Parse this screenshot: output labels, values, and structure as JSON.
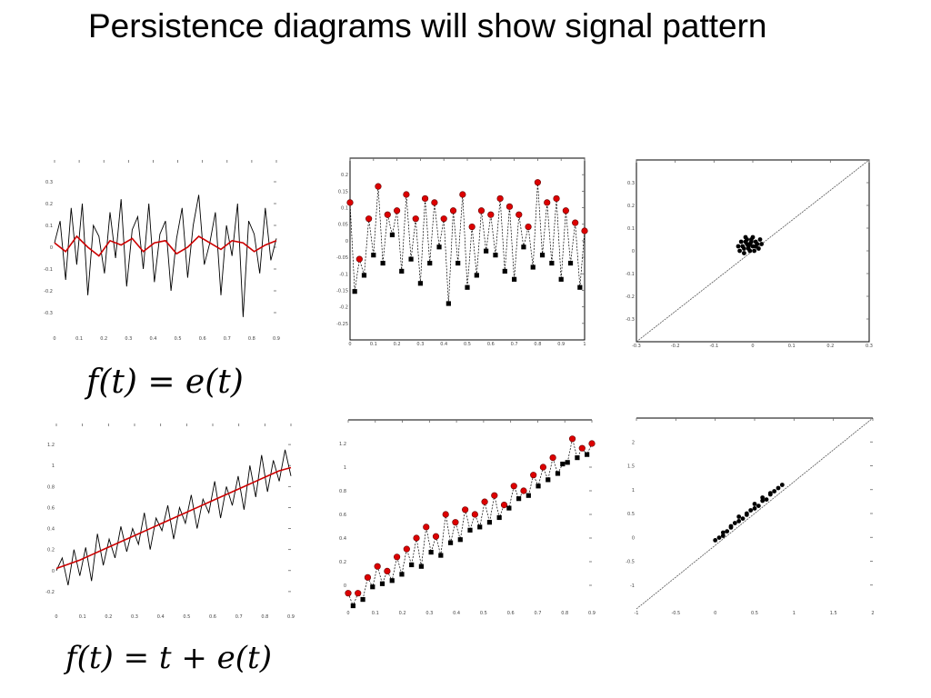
{
  "title": "Persistence diagrams will show signal pattern",
  "formulas": {
    "top": "f(t) = e(t)",
    "bottom": "f(t) = t + e(t)"
  },
  "colors": {
    "signal": "#000000",
    "smooth": "#cc0000",
    "max_marker": "#dd0000",
    "min_marker": "#000000",
    "diagonal": "#555555"
  },
  "chart_data": [
    {
      "id": "noise-signal",
      "type": "line",
      "title": "",
      "xlim": [
        0,
        1
      ],
      "ylim": [
        -0.4,
        0.4
      ],
      "xticks": [
        "0",
        "0.1",
        "0.2",
        "0.3",
        "0.4",
        "0.5",
        "0.6",
        "0.7",
        "0.8",
        "0.9"
      ],
      "yticks": [
        "-0.3",
        "-0.2",
        "-0.1",
        "0",
        "0.1",
        "0.2",
        "0.3"
      ],
      "series": [
        {
          "x": [
            0.0,
            0.025,
            0.05,
            0.075,
            0.1,
            0.125,
            0.15,
            0.175,
            0.2,
            0.225,
            0.25,
            0.275,
            0.3,
            0.325,
            0.35,
            0.375,
            0.4,
            0.425,
            0.45,
            0.475,
            0.5,
            0.525,
            0.55,
            0.575,
            0.6,
            0.625,
            0.65,
            0.675,
            0.7,
            0.725,
            0.75,
            0.775,
            0.8,
            0.825,
            0.85,
            0.875,
            0.9,
            0.925,
            0.95,
            0.975,
            1.0
          ],
          "y": [
            0.02,
            0.12,
            -0.15,
            0.18,
            -0.08,
            0.2,
            -0.22,
            0.1,
            0.05,
            -0.12,
            0.16,
            -0.05,
            0.22,
            -0.18,
            0.08,
            0.14,
            -0.1,
            0.2,
            -0.16,
            0.06,
            0.12,
            -0.2,
            0.04,
            0.18,
            -0.14,
            0.1,
            0.24,
            -0.08,
            0.02,
            0.16,
            -0.22,
            0.1,
            -0.04,
            0.2,
            -0.32,
            0.12,
            0.06,
            -0.12,
            0.18,
            -0.06,
            0.04
          ]
        },
        {
          "x": [
            0.0,
            0.05,
            0.1,
            0.15,
            0.2,
            0.25,
            0.3,
            0.35,
            0.4,
            0.45,
            0.5,
            0.55,
            0.6,
            0.65,
            0.7,
            0.75,
            0.8,
            0.85,
            0.9,
            0.95,
            1.0
          ],
          "y": [
            0.02,
            -0.02,
            0.05,
            0.0,
            -0.04,
            0.03,
            0.01,
            0.04,
            -0.02,
            0.02,
            0.03,
            -0.03,
            0.0,
            0.05,
            0.02,
            -0.01,
            0.03,
            0.02,
            -0.02,
            0.01,
            0.03
          ]
        }
      ]
    },
    {
      "id": "noise-extrema",
      "type": "line",
      "title": "",
      "xlim": [
        0,
        1
      ],
      "ylim": [
        -0.25,
        0.2
      ],
      "xticks": [
        "0",
        "0.1",
        "0.2",
        "0.3",
        "0.4",
        "0.5",
        "0.6",
        "0.7",
        "0.8",
        "0.9",
        "1"
      ],
      "yticks": [
        "-0.25",
        "-0.2",
        "-0.15",
        "-0.1",
        "-0.05",
        "0",
        "0.05",
        "0.1",
        "0.15",
        "0.2"
      ],
      "series": [
        {
          "x": [
            0.0,
            0.02,
            0.04,
            0.06,
            0.08,
            0.1,
            0.12,
            0.14,
            0.16,
            0.18,
            0.2,
            0.22,
            0.24,
            0.26,
            0.28,
            0.3,
            0.32,
            0.34,
            0.36,
            0.38,
            0.4,
            0.42,
            0.44,
            0.46,
            0.48,
            0.5,
            0.52,
            0.54,
            0.56,
            0.58,
            0.6,
            0.62,
            0.64,
            0.66,
            0.68,
            0.7,
            0.72,
            0.74,
            0.76,
            0.78,
            0.8,
            0.82,
            0.84,
            0.86,
            0.88,
            0.9,
            0.92,
            0.94,
            0.96,
            0.98,
            1.0
          ],
          "y": [
            0.09,
            -0.13,
            -0.05,
            -0.09,
            0.05,
            -0.04,
            0.13,
            -0.06,
            0.06,
            0.01,
            0.07,
            -0.08,
            0.11,
            -0.05,
            0.05,
            -0.11,
            0.1,
            -0.06,
            0.09,
            -0.02,
            0.05,
            -0.16,
            0.07,
            -0.06,
            0.11,
            -0.12,
            0.03,
            -0.09,
            0.07,
            -0.03,
            0.06,
            -0.04,
            0.1,
            -0.08,
            0.08,
            -0.1,
            0.06,
            -0.02,
            0.03,
            -0.07,
            0.14,
            -0.04,
            0.09,
            -0.06,
            0.1,
            -0.1,
            0.07,
            -0.06,
            0.04,
            -0.12,
            0.02
          ]
        }
      ]
    },
    {
      "id": "noise-persistence",
      "type": "scatter",
      "title": "",
      "xlim": [
        -0.4,
        0.4
      ],
      "ylim": [
        -0.4,
        0.4
      ],
      "xticks": [
        "-0.3",
        "-0.2",
        "-0.1",
        "0",
        "0.1",
        "0.2",
        "0.3"
      ],
      "yticks": [
        "-0.3",
        "-0.2",
        "-0.1",
        "0",
        "0.1",
        "0.2",
        "0.3"
      ],
      "series": [
        {
          "x": [
            -0.05,
            -0.04,
            -0.03,
            -0.02,
            -0.01,
            0.0,
            0.01,
            0.02,
            0.03,
            -0.045,
            -0.035,
            -0.025,
            -0.015,
            -0.005,
            0.005,
            0.015,
            0.025,
            -0.03,
            -0.02,
            -0.01,
            0.0,
            0.01,
            -0.025,
            -0.015,
            -0.005
          ],
          "y": [
            0.02,
            0.04,
            0.01,
            0.05,
            0.03,
            0.02,
            0.04,
            0.01,
            0.03,
            0.0,
            0.02,
            0.06,
            0.01,
            0.04,
            0.0,
            0.03,
            0.05,
            -0.01,
            0.03,
            0.0,
            0.06,
            0.02,
            0.04,
            0.02,
            0.05
          ]
        }
      ]
    },
    {
      "id": "trend-signal",
      "type": "line",
      "title": "",
      "xlim": [
        0,
        1
      ],
      "ylim": [
        -0.4,
        1.4
      ],
      "xticks": [
        "0",
        "0.1",
        "0.2",
        "0.3",
        "0.4",
        "0.5",
        "0.6",
        "0.7",
        "0.8",
        "0.9"
      ],
      "yticks": [
        "-0.2",
        "0",
        "0.2",
        "0.4",
        "0.6",
        "0.8",
        "1",
        "1.2"
      ],
      "series": [
        {
          "x": [
            0.0,
            0.025,
            0.05,
            0.075,
            0.1,
            0.125,
            0.15,
            0.175,
            0.2,
            0.225,
            0.25,
            0.275,
            0.3,
            0.325,
            0.35,
            0.375,
            0.4,
            0.425,
            0.45,
            0.475,
            0.5,
            0.525,
            0.55,
            0.575,
            0.6,
            0.625,
            0.65,
            0.675,
            0.7,
            0.725,
            0.75,
            0.775,
            0.8,
            0.825,
            0.85,
            0.875,
            0.9,
            0.925,
            0.95,
            0.975,
            1.0
          ],
          "y": [
            0.0,
            0.12,
            -0.14,
            0.2,
            -0.05,
            0.22,
            -0.1,
            0.35,
            0.05,
            0.3,
            0.12,
            0.42,
            0.18,
            0.4,
            0.25,
            0.55,
            0.2,
            0.5,
            0.38,
            0.62,
            0.3,
            0.6,
            0.45,
            0.72,
            0.4,
            0.68,
            0.55,
            0.85,
            0.5,
            0.8,
            0.62,
            0.9,
            0.58,
            1.0,
            0.7,
            1.1,
            0.75,
            1.05,
            0.85,
            1.15,
            0.9
          ]
        },
        {
          "x": [
            0.0,
            0.05,
            0.1,
            0.15,
            0.2,
            0.25,
            0.3,
            0.35,
            0.4,
            0.45,
            0.5,
            0.55,
            0.6,
            0.65,
            0.7,
            0.75,
            0.8,
            0.85,
            0.9,
            0.95,
            1.0
          ],
          "y": [
            0.02,
            0.06,
            0.1,
            0.15,
            0.2,
            0.25,
            0.3,
            0.35,
            0.4,
            0.45,
            0.5,
            0.55,
            0.6,
            0.65,
            0.7,
            0.75,
            0.8,
            0.85,
            0.9,
            0.95,
            0.98
          ]
        }
      ]
    },
    {
      "id": "trend-extrema",
      "type": "line",
      "title": "",
      "xlim": [
        0,
        1
      ],
      "ylim": [
        0,
        1.2
      ],
      "xticks": [
        "0",
        "0.1",
        "0.2",
        "0.3",
        "0.4",
        "0.5",
        "0.6",
        "0.7",
        "0.8",
        "0.9"
      ],
      "yticks": [
        "0",
        "0.2",
        "0.4",
        "0.6",
        "0.8",
        "1",
        "1.2"
      ],
      "series": [
        {
          "x": [
            0.0,
            0.02,
            0.04,
            0.06,
            0.08,
            0.1,
            0.12,
            0.14,
            0.16,
            0.18,
            0.2,
            0.22,
            0.24,
            0.26,
            0.28,
            0.3,
            0.32,
            0.34,
            0.36,
            0.38,
            0.4,
            0.42,
            0.44,
            0.46,
            0.48,
            0.5,
            0.52,
            0.54,
            0.56,
            0.58,
            0.6,
            0.62,
            0.64,
            0.66,
            0.68,
            0.7,
            0.72,
            0.74,
            0.76,
            0.78,
            0.8,
            0.82,
            0.84,
            0.86,
            0.88,
            0.9,
            0.92,
            0.94,
            0.96,
            0.98,
            1.0
          ],
          "y": [
            0.1,
            0.02,
            0.1,
            0.06,
            0.2,
            0.14,
            0.27,
            0.16,
            0.24,
            0.18,
            0.33,
            0.22,
            0.38,
            0.28,
            0.45,
            0.27,
            0.52,
            0.36,
            0.46,
            0.34,
            0.6,
            0.42,
            0.55,
            0.44,
            0.63,
            0.5,
            0.6,
            0.52,
            0.68,
            0.55,
            0.72,
            0.58,
            0.66,
            0.64,
            0.78,
            0.7,
            0.75,
            0.72,
            0.85,
            0.78,
            0.9,
            0.82,
            0.96,
            0.86,
            0.92,
            0.93,
            1.08,
            0.96,
            1.02,
            0.98,
            1.05
          ]
        }
      ]
    },
    {
      "id": "trend-persistence",
      "type": "scatter",
      "title": "",
      "xlim": [
        -1,
        2
      ],
      "ylim": [
        -1,
        2
      ],
      "xticks": [
        "-1",
        "-0.5",
        "0",
        "0.5",
        "1",
        "1.5",
        "2"
      ],
      "yticks": [
        "-1",
        "-0.5",
        "0",
        "0.5",
        "1",
        "1.5",
        "2"
      ],
      "series": [
        {
          "x": [
            0.0,
            0.05,
            0.1,
            0.15,
            0.2,
            0.25,
            0.3,
            0.35,
            0.4,
            0.45,
            0.5,
            0.55,
            0.6,
            0.65,
            0.7,
            0.75,
            0.8,
            0.85,
            0.1,
            0.2,
            0.3,
            0.4,
            0.5,
            0.6,
            0.7
          ],
          "y": [
            0.08,
            0.12,
            0.2,
            0.22,
            0.3,
            0.35,
            0.38,
            0.42,
            0.48,
            0.55,
            0.58,
            0.62,
            0.7,
            0.72,
            0.8,
            0.85,
            0.9,
            0.95,
            0.15,
            0.28,
            0.45,
            0.5,
            0.65,
            0.75,
            0.82
          ]
        }
      ]
    }
  ]
}
